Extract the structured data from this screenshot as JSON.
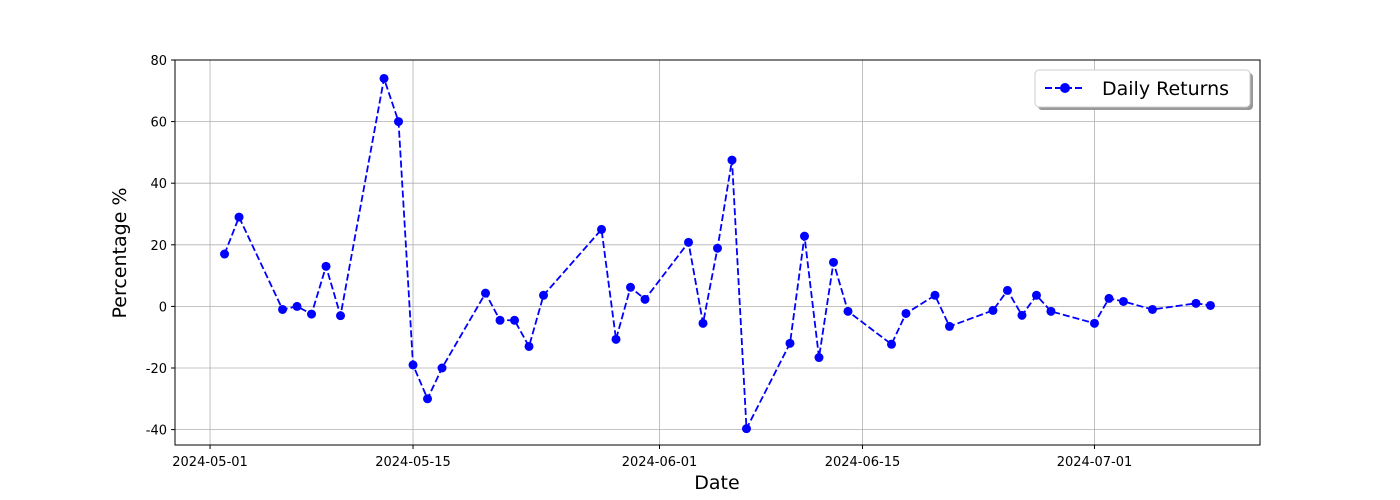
{
  "chart_data": {
    "type": "line",
    "title": "",
    "xlabel": "Date",
    "ylabel": "Percentage %",
    "ylim": [
      -45,
      80
    ],
    "xlim": [
      "2024-04-28T14:00",
      "2024-07-12T10:00"
    ],
    "yticks": [
      -40,
      -20,
      0,
      20,
      40,
      60,
      80
    ],
    "xticks": [
      "2024-05-01",
      "2024-05-15",
      "2024-06-01",
      "2024-06-15",
      "2024-07-01"
    ],
    "grid": true,
    "legend_position": "top-right",
    "series": [
      {
        "name": "Daily Returns",
        "color": "#0000ff",
        "line_style": "dashed",
        "marker": "circle",
        "points": [
          [
            "2024-05-02",
            17.0
          ],
          [
            "2024-05-03",
            29.0
          ],
          [
            "2024-05-06",
            -1.0
          ],
          [
            "2024-05-07",
            0.0
          ],
          [
            "2024-05-08",
            -2.5
          ],
          [
            "2024-05-09",
            13.0
          ],
          [
            "2024-05-10",
            -3.0
          ],
          [
            "2024-05-13",
            74.0
          ],
          [
            "2024-05-14",
            60.0
          ],
          [
            "2024-05-15",
            -19.0
          ],
          [
            "2024-05-16",
            -30.0
          ],
          [
            "2024-05-17",
            -20.0
          ],
          [
            "2024-05-20",
            4.3
          ],
          [
            "2024-05-21",
            -4.5
          ],
          [
            "2024-05-22",
            -4.5
          ],
          [
            "2024-05-23",
            -13.0
          ],
          [
            "2024-05-24",
            3.6
          ],
          [
            "2024-05-28",
            25.0
          ],
          [
            "2024-05-29",
            -10.7
          ],
          [
            "2024-05-30",
            6.2
          ],
          [
            "2024-05-31",
            2.3
          ],
          [
            "2024-06-03",
            20.8
          ],
          [
            "2024-06-04",
            -5.5
          ],
          [
            "2024-06-05",
            18.9
          ],
          [
            "2024-06-06",
            47.5
          ],
          [
            "2024-06-07",
            -39.7
          ],
          [
            "2024-06-10",
            -12.0
          ],
          [
            "2024-06-11",
            22.8
          ],
          [
            "2024-06-12",
            -16.6
          ],
          [
            "2024-06-13",
            14.3
          ],
          [
            "2024-06-14",
            -1.6
          ],
          [
            "2024-06-17",
            -12.3
          ],
          [
            "2024-06-18",
            -2.3
          ],
          [
            "2024-06-20",
            3.6
          ],
          [
            "2024-06-21",
            -6.5
          ],
          [
            "2024-06-24",
            -1.3
          ],
          [
            "2024-06-25",
            5.2
          ],
          [
            "2024-06-26",
            -2.9
          ],
          [
            "2024-06-27",
            3.6
          ],
          [
            "2024-06-28",
            -1.6
          ],
          [
            "2024-07-01",
            -5.5
          ],
          [
            "2024-07-02",
            2.6
          ],
          [
            "2024-07-03",
            1.6
          ],
          [
            "2024-07-05",
            -1.0
          ],
          [
            "2024-07-08",
            1.0
          ],
          [
            "2024-07-09",
            0.3
          ]
        ]
      }
    ]
  }
}
